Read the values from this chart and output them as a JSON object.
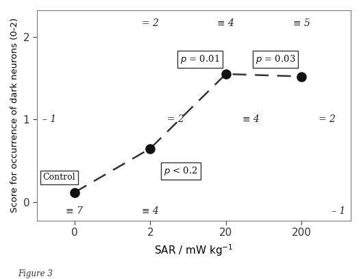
{
  "x_positions": [
    0,
    2,
    20,
    200
  ],
  "x_labels": [
    "0",
    "2",
    "20",
    "200"
  ],
  "y_data": [
    0.12,
    0.65,
    1.55,
    1.52
  ],
  "xlabel": "SAR / mW kg$^{-1}$",
  "ylabel": "Score for occurrence of dark neurons (0-2)",
  "figsize": [
    5.27,
    4.07
  ],
  "dpi": 100,
  "bg_color": "#ffffff",
  "point_color": "#111111",
  "point_size": 90,
  "dashed_line_color": "#333333",
  "figure_label": "Figure 3",
  "control_label": "Control"
}
